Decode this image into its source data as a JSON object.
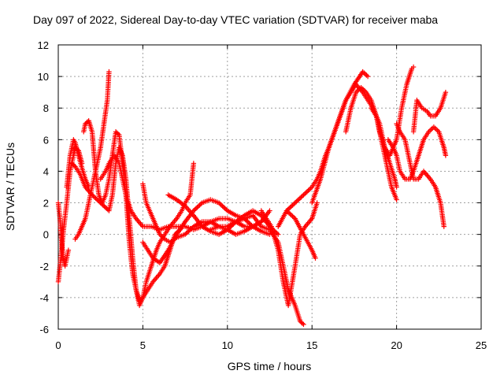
{
  "chart_data": {
    "type": "scatter",
    "title": "Day 097 of 2022, Sidereal Day-to-day VTEC variation (SDTVAR) for receiver maba",
    "xlabel": "GPS time / hours",
    "ylabel": "SDTVAR / TECUs",
    "xlim": [
      0,
      25
    ],
    "ylim": [
      -6,
      12
    ],
    "xticks": [
      "0",
      "5",
      "10",
      "15",
      "20",
      "25"
    ],
    "yticks": [
      "-6",
      "-4",
      "-2",
      "0",
      "2",
      "4",
      "6",
      "8",
      "10",
      "12"
    ],
    "grid": true,
    "legend": "none",
    "marker": "+",
    "color": "#ff0000",
    "series": [
      {
        "x": [
          0.0,
          0.1,
          0.2,
          0.3,
          0.5,
          0.7,
          0.9,
          1.0,
          1.2,
          1.4
        ],
        "y": [
          -3.0,
          -2.0,
          -1.0,
          0.2,
          2.0,
          4.0,
          5.0,
          5.5,
          5.3,
          4.5
        ]
      },
      {
        "x": [
          0.0,
          0.1,
          0.2,
          0.3,
          0.4,
          0.6
        ],
        "y": [
          2.0,
          1.0,
          -0.5,
          -1.5,
          -2.0,
          -1.0
        ]
      },
      {
        "x": [
          1.0,
          1.2,
          1.4,
          1.6,
          1.8,
          2.0,
          2.2,
          2.5,
          2.7,
          2.9,
          3.0
        ],
        "y": [
          -0.3,
          0.0,
          0.5,
          1.0,
          2.0,
          3.0,
          4.0,
          5.5,
          7.0,
          8.5,
          10.3
        ]
      },
      {
        "x": [
          0.5,
          0.7,
          0.9,
          1.0,
          1.2,
          1.4,
          1.6,
          1.8
        ],
        "y": [
          3.0,
          5.0,
          6.0,
          5.8,
          5.0,
          4.2,
          3.5,
          3.0
        ]
      },
      {
        "x": [
          1.5,
          1.6,
          1.8,
          2.0,
          2.2,
          2.4,
          2.6,
          2.8,
          3.0,
          3.2,
          3.4,
          3.6,
          3.8,
          4.0,
          4.2,
          4.4,
          4.6,
          4.8,
          5.0,
          5.2,
          5.5,
          5.8,
          6.0,
          6.3,
          6.6,
          7.0,
          7.3,
          7.5,
          7.8,
          8.0
        ],
        "y": [
          6.5,
          7.0,
          7.2,
          6.5,
          4.0,
          2.5,
          2.0,
          2.5,
          3.5,
          5.0,
          6.5,
          6.3,
          4.5,
          2.5,
          -0.5,
          -2.5,
          -3.5,
          -4.2,
          -4.0,
          -3.0,
          -2.0,
          -1.0,
          -0.5,
          0.0,
          0.5,
          1.0,
          1.5,
          2.0,
          2.5,
          4.5
        ]
      },
      {
        "x": [
          0.8,
          1.0,
          1.3,
          1.6,
          2.0,
          2.5,
          3.0,
          3.2,
          3.4,
          3.6,
          3.8,
          4.0,
          4.2,
          4.4,
          4.6,
          4.8,
          5.0,
          5.3,
          5.6,
          6.0,
          6.3,
          6.6,
          6.9,
          7.2
        ],
        "y": [
          4.5,
          4.3,
          3.8,
          3.0,
          2.5,
          2.0,
          1.5,
          2.5,
          4.5,
          5.5,
          5.0,
          3.5,
          1.0,
          -1.5,
          -3.5,
          -4.5,
          -4.0,
          -3.5,
          -3.0,
          -2.5,
          -2.0,
          -1.0,
          0.0,
          0.3
        ]
      },
      {
        "x": [
          2.5,
          2.8,
          3.0,
          3.3,
          3.6,
          3.8,
          4.0,
          4.3,
          4.6,
          5.0,
          5.5,
          6.0,
          6.5,
          7.0,
          7.5,
          8.0,
          8.5,
          9.0,
          9.5,
          10.0,
          10.5,
          11.0,
          11.5,
          12.0
        ],
        "y": [
          3.5,
          4.0,
          4.5,
          5.0,
          4.5,
          3.5,
          2.5,
          1.5,
          1.0,
          0.5,
          0.5,
          0.3,
          0.5,
          0.5,
          0.5,
          0.3,
          0.5,
          0.8,
          1.0,
          1.0,
          0.8,
          0.5,
          0.5,
          0.8
        ]
      },
      {
        "x": [
          5.0,
          5.2,
          5.4,
          5.6,
          5.8,
          6.0,
          6.3,
          6.6,
          7.0,
          7.5,
          8.0,
          8.5,
          9.0,
          9.5,
          10.0,
          10.5,
          11.0,
          11.5,
          12.0,
          12.5
        ],
        "y": [
          3.2,
          2.0,
          1.5,
          1.0,
          0.5,
          0.0,
          -0.3,
          -0.5,
          -0.2,
          0.0,
          0.5,
          0.8,
          0.8,
          0.5,
          0.3,
          0.0,
          0.2,
          0.5,
          0.8,
          1.5
        ]
      },
      {
        "x": [
          5.0,
          5.3,
          5.6,
          6.0,
          6.5,
          7.0,
          7.5,
          8.0,
          8.5,
          9.0,
          9.5,
          10.0,
          10.5,
          11.0,
          11.5,
          12.0,
          12.5
        ],
        "y": [
          -0.5,
          -1.0,
          -1.5,
          -1.8,
          -1.0,
          0.0,
          0.8,
          1.5,
          2.0,
          2.2,
          2.0,
          1.5,
          1.2,
          1.0,
          0.5,
          0.2,
          0.0
        ]
      },
      {
        "x": [
          6.5,
          7.0,
          7.5,
          8.0,
          8.5,
          9.0,
          9.5,
          10.0,
          10.5,
          11.0,
          11.5,
          12.0,
          12.5,
          13.0
        ],
        "y": [
          2.5,
          2.2,
          1.8,
          1.2,
          0.5,
          0.2,
          0.0,
          0.3,
          0.8,
          1.2,
          1.5,
          1.2,
          0.5,
          0.0
        ]
      },
      {
        "x": [
          9.0,
          9.5,
          10.0,
          10.5,
          11.0,
          11.5,
          12.0,
          12.5,
          13.0,
          13.3,
          13.6,
          14.0,
          14.3,
          14.5
        ],
        "y": [
          0.3,
          0.5,
          0.5,
          0.8,
          1.0,
          1.2,
          0.5,
          0.3,
          -0.5,
          -2.0,
          -3.5,
          -4.5,
          -5.5,
          -5.7
        ]
      },
      {
        "x": [
          12.0,
          12.3,
          12.6,
          13.0,
          13.3,
          13.6,
          14.0,
          14.3,
          14.6,
          15.0,
          15.3
        ],
        "y": [
          1.5,
          1.0,
          0.5,
          -1.0,
          -3.0,
          -4.5,
          -2.0,
          0.0,
          0.5,
          1.0,
          2.0
        ]
      },
      {
        "x": [
          13.0,
          13.5,
          14.0,
          14.5,
          15.0,
          15.3,
          15.5,
          15.8,
          16.0,
          16.5,
          17.0,
          17.5,
          18.0,
          18.3
        ],
        "y": [
          0.5,
          1.5,
          2.0,
          2.5,
          3.0,
          3.5,
          4.0,
          5.0,
          5.5,
          7.0,
          8.5,
          9.5,
          10.3,
          10.0
        ]
      },
      {
        "x": [
          13.5,
          14.0,
          14.5,
          15.0,
          15.2
        ],
        "y": [
          1.5,
          1.0,
          0.0,
          -1.0,
          -1.5
        ]
      },
      {
        "x": [
          15.0,
          15.5,
          16.0,
          16.5,
          17.0,
          17.3,
          17.6,
          18.0,
          18.3,
          18.6,
          19.0,
          19.3,
          19.6,
          19.9,
          20.0
        ],
        "y": [
          2.0,
          3.5,
          5.5,
          7.0,
          8.5,
          9.0,
          9.5,
          9.0,
          8.5,
          8.0,
          7.0,
          5.5,
          4.5,
          3.5,
          3.0
        ]
      },
      {
        "x": [
          17.0,
          17.3,
          17.6,
          17.9,
          18.2,
          18.5,
          18.8,
          19.1,
          19.4,
          19.7,
          20.0
        ],
        "y": [
          6.5,
          8.0,
          9.0,
          9.3,
          9.0,
          8.5,
          7.5,
          6.0,
          4.5,
          3.0,
          2.2
        ]
      },
      {
        "x": [
          18.5,
          18.8,
          19.0,
          19.3,
          19.6,
          20.0,
          20.3,
          20.6,
          20.9,
          21.0
        ],
        "y": [
          8.0,
          7.5,
          6.5,
          5.5,
          5.0,
          6.0,
          8.0,
          9.5,
          10.5,
          10.6
        ]
      },
      {
        "x": [
          19.5,
          19.8,
          20.0,
          20.2,
          20.5,
          20.8,
          21.0,
          21.3,
          21.6,
          21.9,
          22.2,
          22.5,
          22.8,
          22.9
        ],
        "y": [
          6.0,
          5.5,
          5.0,
          4.0,
          3.5,
          3.5,
          4.0,
          5.0,
          6.0,
          6.5,
          6.8,
          6.5,
          5.5,
          5.0
        ]
      },
      {
        "x": [
          20.0,
          20.2,
          20.5,
          20.8,
          21.0,
          21.3,
          21.6,
          22.0,
          22.3,
          22.6,
          22.8
        ],
        "y": [
          7.0,
          6.5,
          6.0,
          4.5,
          3.5,
          3.5,
          4.0,
          3.5,
          3.0,
          2.0,
          0.5
        ]
      },
      {
        "x": [
          21.0,
          21.2,
          21.5,
          21.8,
          22.0,
          22.3,
          22.6,
          22.9
        ],
        "y": [
          6.5,
          8.5,
          8.0,
          7.8,
          7.5,
          7.5,
          8.0,
          9.0
        ]
      }
    ]
  }
}
